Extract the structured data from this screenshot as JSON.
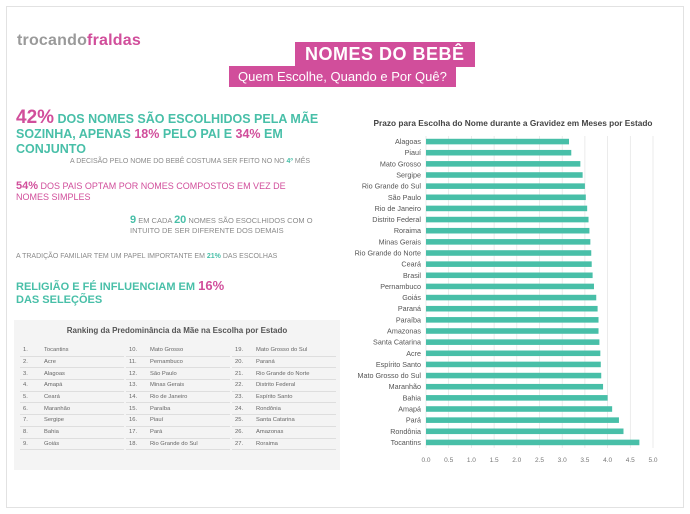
{
  "logo": {
    "part1": "trocando",
    "part2": "fraldas"
  },
  "header": {
    "title": "NOMES DO BEBÊ",
    "subtitle": "Quem Escolhe, Quando e Por Quê?"
  },
  "facts": {
    "f1": {
      "pct1": "42%",
      "t1": " DOS NOMES SÃO ESCOLHIDOS PELA MÃE SOZINHA, APENAS ",
      "pct2": "18%",
      "t2": " PELO PAI E ",
      "pct3": "34%",
      "t3": " EM CONJUNTO"
    },
    "f2": {
      "text": "A DECISÃO PELO NOME DO BEBÊ COSTUMA SER FEITO NO NO ",
      "mes": "4º",
      "t2": " MÊS"
    },
    "f3": {
      "pct": "54%",
      "text": " DOS PAIS OPTAM POR NOMES COMPOSTOS EM VEZ DE NOMES SIMPLES"
    },
    "f4": {
      "n1": "9",
      "t1": " EM CADA ",
      "n2": "20",
      "t2": " NOMES SÃO ESOCLHIDOS COM O INTUITO DE SER DIFERENTE DOS DEMAIS"
    },
    "f5": {
      "text": "A TRADIÇÃO FAMILIAR TEM UM PAPEL IMPORTANTE EM ",
      "pct": "21%",
      "t2": " DAS ESCOLHAS"
    },
    "f6": {
      "text": "RELIGIÃO E FÉ INFLUENCIAM EM ",
      "pct": "16%",
      "t2": " DAS SELEÇÕES"
    }
  },
  "ranking": {
    "title": "Ranking da Predominância da Mãe na Escolha por Estado",
    "items": [
      {
        "rank": "1.",
        "name": "Tocantins"
      },
      {
        "rank": "2.",
        "name": "Acre"
      },
      {
        "rank": "3.",
        "name": "Alagoas"
      },
      {
        "rank": "4.",
        "name": "Amapá"
      },
      {
        "rank": "5.",
        "name": "Ceará"
      },
      {
        "rank": "6.",
        "name": "Maranhão"
      },
      {
        "rank": "7.",
        "name": "Sergipe"
      },
      {
        "rank": "8.",
        "name": "Bahia"
      },
      {
        "rank": "9.",
        "name": "Goiás"
      },
      {
        "rank": "10.",
        "name": "Mato Grosso"
      },
      {
        "rank": "11.",
        "name": "Pernambuco"
      },
      {
        "rank": "12.",
        "name": "São Paulo"
      },
      {
        "rank": "13.",
        "name": "Minas Gerais"
      },
      {
        "rank": "14.",
        "name": "Rio de Janeiro"
      },
      {
        "rank": "15.",
        "name": "Paraíba"
      },
      {
        "rank": "16.",
        "name": "Piauí"
      },
      {
        "rank": "17.",
        "name": "Pará"
      },
      {
        "rank": "18.",
        "name": "Rio Grande do Sul"
      },
      {
        "rank": "19.",
        "name": "Mato Grosso do Sul"
      },
      {
        "rank": "20.",
        "name": "Paraná"
      },
      {
        "rank": "21.",
        "name": "Rio Grande do Norte"
      },
      {
        "rank": "22.",
        "name": "Distrito Federal"
      },
      {
        "rank": "23.",
        "name": "Espírito Santo"
      },
      {
        "rank": "24.",
        "name": "Rondônia"
      },
      {
        "rank": "25.",
        "name": "Santa Catarina"
      },
      {
        "rank": "26.",
        "name": "Amazonas"
      },
      {
        "rank": "27.",
        "name": "Roraima"
      }
    ]
  },
  "colors": {
    "teal": "#48bfa8",
    "pink": "#d14e9b",
    "grid": "#e3e3e3"
  },
  "chart_data": {
    "type": "bar",
    "orientation": "horizontal",
    "title": "Prazo para Escolha do Nome durante a Gravidez em Meses por Estado",
    "categories": [
      "Alagoas",
      "Piauí",
      "Mato Grosso",
      "Sergipe",
      "Rio Grande do Sul",
      "São Paulo",
      "Rio de Janeiro",
      "Distrito Federal",
      "Roraima",
      "Minas Gerais",
      "Rio Grande do Norte",
      "Ceará",
      "Brasil",
      "Pernambuco",
      "Goiás",
      "Paraná",
      "Paraíba",
      "Amazonas",
      "Santa Catarina",
      "Acre",
      "Espírito Santo",
      "Mato Grosso do Sul",
      "Maranhão",
      "Bahia",
      "Amapá",
      "Pará",
      "Rondônia",
      "Tocantins"
    ],
    "values": [
      3.15,
      3.2,
      3.4,
      3.45,
      3.5,
      3.52,
      3.55,
      3.58,
      3.6,
      3.62,
      3.64,
      3.65,
      3.67,
      3.7,
      3.75,
      3.78,
      3.8,
      3.8,
      3.82,
      3.84,
      3.85,
      3.86,
      3.9,
      4.0,
      4.1,
      4.25,
      4.35,
      4.7
    ],
    "xlim": [
      0,
      5
    ],
    "xticks": [
      "0.0",
      "0.5",
      "1.0",
      "1.5",
      "2.0",
      "2.5",
      "3.0",
      "3.5",
      "4.0",
      "4.5",
      "5.0"
    ],
    "grid": true
  }
}
